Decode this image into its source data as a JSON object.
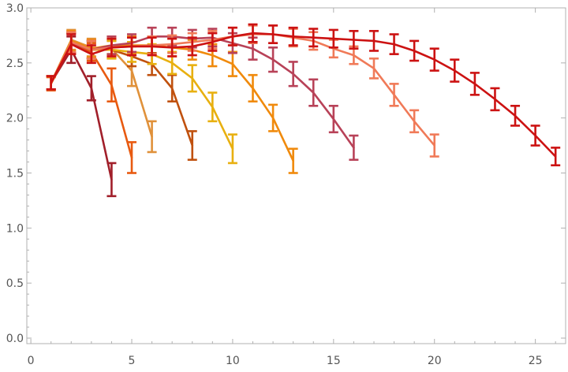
{
  "chart_data": {
    "type": "line",
    "title": "",
    "xlabel": "",
    "ylabel": "",
    "xlim": [
      -0.2,
      26.5
    ],
    "ylim": [
      -0.05,
      3.0
    ],
    "grid": false,
    "legend": "none",
    "x_ticks": [
      0,
      5,
      10,
      15,
      20,
      25
    ],
    "y_ticks": [
      0.0,
      0.5,
      1.0,
      1.5,
      2.0,
      2.5,
      3.0
    ],
    "y_tick_labels": [
      "0.0",
      "0.5",
      "1.0",
      "1.5",
      "2.0",
      "2.5",
      "3.0"
    ],
    "series": [
      {
        "color": "#a11f2a",
        "x": [
          1,
          2,
          3,
          4
        ],
        "y": [
          2.32,
          2.62,
          2.27,
          1.44
        ],
        "err": [
          0.06,
          0.12,
          0.11,
          0.15
        ]
      },
      {
        "color": "#e85a10",
        "x": [
          1,
          2,
          3,
          4,
          5
        ],
        "y": [
          2.31,
          2.68,
          2.6,
          2.3,
          1.64
        ],
        "err": [
          0.06,
          0.1,
          0.08,
          0.15,
          0.14
        ]
      },
      {
        "color": "#e0913a",
        "x": [
          1,
          2,
          3,
          4,
          5,
          6
        ],
        "y": [
          2.32,
          2.71,
          2.64,
          2.63,
          2.43,
          1.83
        ],
        "err": [
          0.06,
          0.09,
          0.08,
          0.08,
          0.14,
          0.14
        ]
      },
      {
        "color": "#c0510e",
        "x": [
          1,
          2,
          3,
          4,
          5,
          6,
          7,
          8
        ],
        "y": [
          2.32,
          2.68,
          2.62,
          2.62,
          2.56,
          2.49,
          2.27,
          1.75
        ],
        "err": [
          0.06,
          0.09,
          0.08,
          0.08,
          0.09,
          0.1,
          0.12,
          0.13
        ]
      },
      {
        "color": "#e8b010",
        "x": [
          1,
          2,
          3,
          4,
          5,
          6,
          7,
          8,
          9,
          10
        ],
        "y": [
          2.32,
          2.68,
          2.62,
          2.62,
          2.6,
          2.58,
          2.5,
          2.36,
          2.1,
          1.72
        ],
        "err": [
          0.06,
          0.09,
          0.08,
          0.08,
          0.09,
          0.09,
          0.1,
          0.12,
          0.13,
          0.13
        ]
      },
      {
        "color": "#f08a0c",
        "x": [
          1,
          2,
          3,
          4,
          5,
          6,
          7,
          8,
          9,
          10,
          11,
          12,
          13
        ],
        "y": [
          2.32,
          2.7,
          2.63,
          2.66,
          2.66,
          2.66,
          2.64,
          2.62,
          2.57,
          2.49,
          2.27,
          2.0,
          1.61
        ],
        "err": [
          0.06,
          0.09,
          0.08,
          0.08,
          0.08,
          0.08,
          0.08,
          0.09,
          0.1,
          0.11,
          0.12,
          0.12,
          0.11
        ]
      },
      {
        "color": "#b84258",
        "x": [
          1,
          2,
          3,
          4,
          5,
          6,
          7,
          8,
          9,
          10,
          11,
          12,
          13,
          14,
          15,
          16
        ],
        "y": [
          2.32,
          2.68,
          2.62,
          2.66,
          2.68,
          2.74,
          2.74,
          2.72,
          2.73,
          2.68,
          2.63,
          2.53,
          2.4,
          2.23,
          1.99,
          1.73
        ],
        "err": [
          0.06,
          0.09,
          0.08,
          0.08,
          0.08,
          0.08,
          0.08,
          0.08,
          0.08,
          0.09,
          0.1,
          0.11,
          0.11,
          0.12,
          0.12,
          0.11
        ]
      },
      {
        "color": "#f07a58",
        "x": [
          1,
          2,
          3,
          4,
          5,
          6,
          7,
          8,
          9,
          10,
          11,
          12,
          13,
          14,
          15,
          16,
          17,
          18,
          19,
          20
        ],
        "y": [
          2.32,
          2.69,
          2.62,
          2.64,
          2.65,
          2.66,
          2.67,
          2.69,
          2.71,
          2.74,
          2.76,
          2.76,
          2.73,
          2.7,
          2.63,
          2.57,
          2.45,
          2.21,
          1.97,
          1.75
        ],
        "err": [
          0.06,
          0.09,
          0.08,
          0.08,
          0.08,
          0.08,
          0.08,
          0.08,
          0.08,
          0.08,
          0.08,
          0.08,
          0.08,
          0.08,
          0.08,
          0.08,
          0.09,
          0.1,
          0.1,
          0.1
        ]
      },
      {
        "color": "#cc1212",
        "x": [
          1,
          2,
          3,
          4,
          5,
          6,
          7,
          8,
          9,
          10,
          11,
          12,
          13,
          14,
          15,
          16,
          17,
          18,
          19,
          20,
          21,
          22,
          23,
          24,
          25,
          26
        ],
        "y": [
          2.32,
          2.67,
          2.58,
          2.64,
          2.65,
          2.65,
          2.64,
          2.65,
          2.69,
          2.74,
          2.77,
          2.76,
          2.74,
          2.73,
          2.72,
          2.71,
          2.7,
          2.67,
          2.61,
          2.53,
          2.43,
          2.31,
          2.17,
          2.02,
          1.84,
          1.65
        ],
        "err": [
          0.06,
          0.09,
          0.08,
          0.08,
          0.08,
          0.08,
          0.08,
          0.08,
          0.08,
          0.08,
          0.08,
          0.08,
          0.08,
          0.08,
          0.08,
          0.08,
          0.09,
          0.09,
          0.09,
          0.1,
          0.1,
          0.1,
          0.1,
          0.09,
          0.09,
          0.08
        ]
      }
    ]
  }
}
